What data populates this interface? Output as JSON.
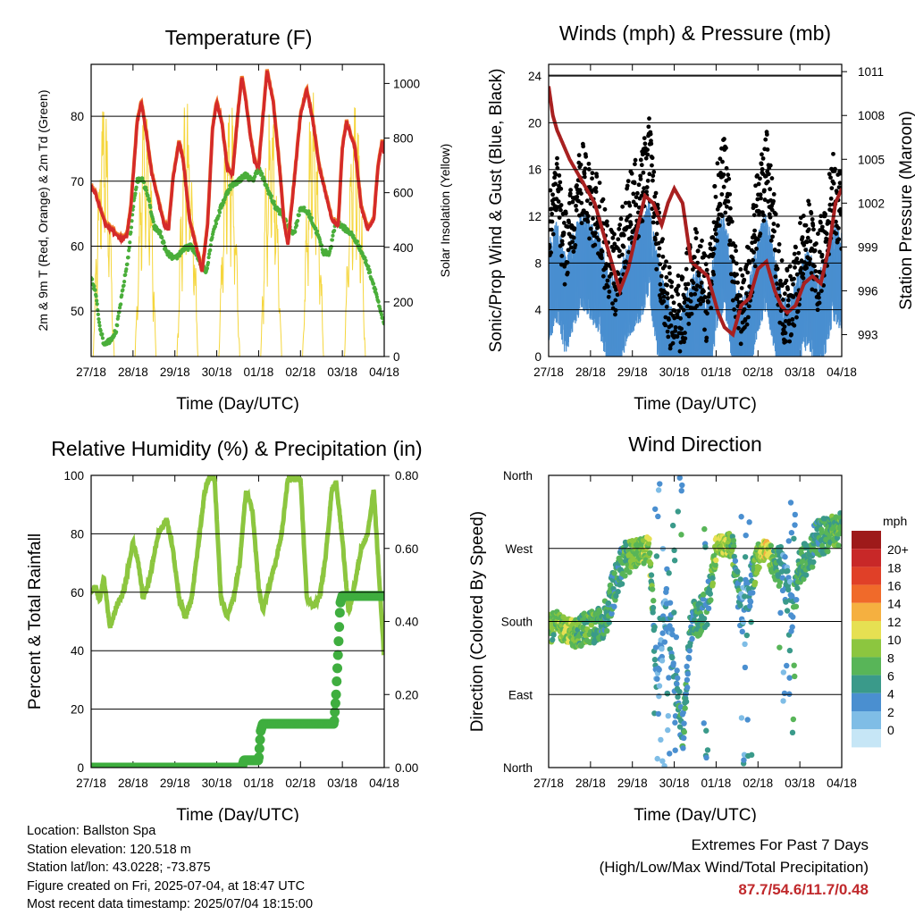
{
  "chart_data": [
    {
      "type": "line",
      "title": "Temperature (F)",
      "xlabel": "Time (Day/UTC)",
      "ylabel": "2m & 9m T (Red, Orange) & 2m Td (Green)",
      "y2label": "Solar Insolation (Yellow)",
      "categories": [
        "27/18",
        "28/18",
        "29/18",
        "30/18",
        "01/18",
        "02/18",
        "03/18",
        "04/18"
      ],
      "ylim": [
        43,
        88
      ],
      "yticks": [
        50,
        60,
        70,
        80
      ],
      "y2lim": [
        0,
        1070
      ],
      "y2ticks": [
        0,
        200,
        400,
        600,
        800,
        1000
      ],
      "series": [
        {
          "name": "2m T",
          "color": "#d42a2a",
          "x": [
            0,
            0.1,
            0.2,
            0.35,
            0.5,
            0.6,
            0.75,
            0.85,
            0.95,
            1.1,
            1.2,
            1.3,
            1.45,
            1.6,
            1.75,
            1.85,
            1.95,
            2.1,
            2.2,
            2.35,
            2.5,
            2.65,
            2.78,
            2.9,
            3.0,
            3.12,
            3.25,
            3.38,
            3.5,
            3.6,
            3.7,
            3.8,
            3.9,
            4.0,
            4.08,
            4.2,
            4.35,
            4.5,
            4.6,
            4.7,
            4.85,
            5.0,
            5.15,
            5.3,
            5.45,
            5.6,
            5.75,
            5.9,
            6.0,
            6.1,
            6.3,
            6.45,
            6.6,
            6.75,
            6.85,
            6.95,
            7.0
          ],
          "values": [
            69,
            68,
            66,
            63,
            62.5,
            61.5,
            61,
            61.5,
            66,
            79,
            82,
            78,
            71,
            67,
            63,
            62.5,
            70,
            76,
            73,
            64,
            60,
            56,
            63,
            78,
            82,
            79,
            72,
            71,
            80,
            86,
            82,
            77,
            73,
            72,
            78,
            87,
            82,
            72,
            64,
            60,
            70,
            80,
            84,
            79,
            72,
            68,
            64,
            63,
            75,
            79,
            75,
            66,
            62.5,
            64,
            72,
            76,
            74
          ]
        },
        {
          "name": "9m T",
          "color": "#f07a2a",
          "x": [
            0,
            1.1,
            1.2,
            2.1,
            2.9,
            3.0,
            3.6,
            4.2,
            5.15,
            6.1,
            7.0
          ],
          "values": [
            69,
            79,
            81,
            75,
            77,
            81,
            85,
            86,
            83,
            78,
            73
          ]
        },
        {
          "name": "2m Td",
          "color": "#4aae3a",
          "x": [
            0,
            0.1,
            0.2,
            0.3,
            0.45,
            0.6,
            0.75,
            0.9,
            1.0,
            1.1,
            1.2,
            1.35,
            1.5,
            1.65,
            1.8,
            2.0,
            2.2,
            2.4,
            2.6,
            2.75,
            2.9,
            3.1,
            3.3,
            3.5,
            3.7,
            3.85,
            4.0,
            4.2,
            4.4,
            4.55,
            4.7,
            4.85,
            5.0,
            5.2,
            5.4,
            5.55,
            5.7,
            5.85,
            6.0,
            6.2,
            6.4,
            6.6,
            6.8,
            6.9,
            7.0
          ],
          "values": [
            55,
            53,
            48,
            45,
            45.5,
            47,
            53,
            59,
            66,
            70,
            70.5,
            68,
            63,
            62,
            59,
            58,
            59.5,
            60,
            57.5,
            56,
            62,
            66,
            69,
            70,
            71,
            70,
            72,
            69,
            66,
            65,
            63,
            62,
            66,
            65,
            62,
            59,
            59,
            64,
            63,
            62,
            60,
            57,
            53,
            50,
            48
          ]
        },
        {
          "name": "Solar Insolation",
          "axis": "y2",
          "color": "#f5d63d",
          "x": [
            0.15,
            0.28,
            0.42,
            0.55,
            1.05,
            1.15,
            1.3,
            1.45,
            1.55,
            2.05,
            2.15,
            2.3,
            2.45,
            2.55,
            3.05,
            3.15,
            3.3,
            3.45,
            3.55,
            4.05,
            4.15,
            4.3,
            4.45,
            4.55,
            5.05,
            5.15,
            5.3,
            5.45,
            5.55,
            6.05,
            6.15,
            6.3,
            6.45,
            6.55,
            6.85,
            6.95,
            7.0
          ],
          "values": [
            0,
            520,
            1000,
            0,
            0,
            1070,
            200,
            900,
            0,
            0,
            950,
            600,
            870,
            0,
            0,
            1000,
            150,
            850,
            0,
            0,
            1020,
            700,
            900,
            0,
            0,
            980,
            500,
            900,
            0,
            0,
            950,
            800,
            1000,
            0,
            0,
            800,
            1000
          ]
        }
      ]
    },
    {
      "type": "scatter",
      "title": "Winds (mph) & Pressure (mb)",
      "xlabel": "Time (Day/UTC)",
      "ylabel": "Sonic/Prop Wind & Gust (Blue, Black)",
      "y2label": "Station Pressure (Maroon)",
      "categories": [
        "27/18",
        "28/18",
        "29/18",
        "30/18",
        "01/18",
        "02/18",
        "03/18",
        "04/18"
      ],
      "ylim": [
        0,
        25
      ],
      "yticks": [
        0,
        4,
        8,
        12,
        16,
        20,
        24
      ],
      "y2lim": [
        991.5,
        1011.5
      ],
      "y2ticks": [
        993,
        996,
        999,
        1002,
        1005,
        1008,
        1011
      ],
      "series": [
        {
          "name": "Wind",
          "color": "#4a8fd0",
          "x": [
            0,
            0.2,
            0.4,
            0.6,
            0.8,
            1.0,
            1.2,
            1.4,
            1.6,
            1.8,
            2.0,
            2.2,
            2.4,
            2.6,
            2.8,
            3.0,
            3.2,
            3.4,
            3.6,
            3.8,
            4.0,
            4.2,
            4.4,
            4.6,
            4.8,
            5.0,
            5.2,
            5.4,
            5.6,
            5.8,
            6.0,
            6.2,
            6.4,
            6.6,
            6.8,
            7.0
          ],
          "values": [
            7,
            9,
            6,
            8,
            10,
            9,
            8,
            5,
            4,
            6,
            8,
            9,
            11,
            6,
            3,
            1,
            2,
            4,
            5,
            2,
            8,
            10,
            5,
            2,
            4,
            8,
            10,
            6,
            2,
            3,
            5,
            7,
            4,
            6,
            9,
            8
          ]
        },
        {
          "name": "Gust",
          "color": "#000000",
          "x": [
            0,
            0.2,
            0.4,
            0.6,
            0.8,
            1.0,
            1.2,
            1.4,
            1.6,
            1.8,
            2.0,
            2.2,
            2.4,
            2.6,
            2.8,
            3.0,
            3.2,
            3.4,
            3.6,
            3.8,
            4.0,
            4.2,
            4.4,
            4.6,
            4.8,
            5.0,
            5.2,
            5.4,
            5.6,
            5.8,
            6.0,
            6.2,
            6.4,
            6.6,
            6.8,
            7.0
          ],
          "values": [
            11,
            14,
            9,
            12,
            15,
            13,
            12,
            8,
            7,
            10,
            13,
            14,
            17,
            10,
            5,
            3,
            4,
            7,
            8,
            4,
            13,
            16,
            8,
            4,
            7,
            13,
            16,
            10,
            4,
            5,
            8,
            11,
            7,
            10,
            14,
            12
          ]
        },
        {
          "name": "Station Pressure",
          "axis": "y2",
          "color": "#a82020",
          "x": [
            0,
            0.1,
            0.2,
            0.35,
            0.5,
            0.7,
            0.9,
            1.1,
            1.3,
            1.5,
            1.7,
            1.9,
            2.1,
            2.3,
            2.5,
            2.7,
            2.85,
            3.0,
            3.2,
            3.4,
            3.6,
            3.8,
            3.95,
            4.05,
            4.2,
            4.4,
            4.6,
            4.8,
            5.0,
            5.2,
            5.4,
            5.55,
            5.7,
            5.9,
            6.1,
            6.3,
            6.5,
            6.7,
            6.85,
            7.0
          ],
          "values": [
            1010,
            1008,
            1007,
            1006,
            1005,
            1004,
            1003,
            1002,
            1000,
            998,
            996,
            997.5,
            1000,
            1002.5,
            1002,
            1000.5,
            1002,
            1003,
            1002,
            998,
            997.5,
            997,
            995.5,
            994.5,
            993.5,
            993,
            995,
            995.5,
            997.5,
            998,
            996,
            995,
            994.5,
            995,
            996.5,
            997,
            996.5,
            999,
            1002,
            1003
          ]
        }
      ]
    },
    {
      "type": "line",
      "title": "Relative Humidity (%) & Precipitation (in)",
      "xlabel": "Time (Day/UTC)",
      "ylabel": "Percent & Total Rainfall",
      "categories": [
        "27/18",
        "28/18",
        "29/18",
        "30/18",
        "01/18",
        "02/18",
        "03/18",
        "04/18"
      ],
      "ylim": [
        0,
        100
      ],
      "yticks": [
        0,
        20,
        40,
        60,
        80,
        100
      ],
      "y2lim": [
        0,
        0.8
      ],
      "y2ticks": [
        "0.00",
        "0.20",
        "0.40",
        "0.60",
        "0.80"
      ],
      "series": [
        {
          "name": "Relative Humidity",
          "color": "#8cc63f",
          "x": [
            0,
            0.1,
            0.2,
            0.3,
            0.45,
            0.6,
            0.8,
            0.9,
            1.0,
            1.1,
            1.25,
            1.4,
            1.6,
            1.8,
            1.95,
            2.1,
            2.25,
            2.4,
            2.55,
            2.7,
            2.8,
            2.95,
            3.1,
            3.25,
            3.4,
            3.55,
            3.7,
            3.85,
            4.0,
            4.1,
            4.25,
            4.4,
            4.55,
            4.7,
            4.85,
            5.0,
            5.15,
            5.3,
            5.45,
            5.6,
            5.75,
            5.85,
            6.0,
            6.15,
            6.3,
            6.45,
            6.6,
            6.75,
            6.9,
            7.0
          ],
          "values": [
            60,
            62,
            57,
            65,
            48,
            55,
            61,
            70,
            77,
            72,
            58,
            65,
            80,
            85,
            75,
            58,
            51,
            58,
            75,
            93,
            99,
            99,
            58,
            52,
            58,
            70,
            95,
            88,
            62,
            54,
            62,
            70,
            80,
            99,
            99,
            99,
            58,
            55,
            58,
            72,
            95,
            98,
            78,
            53,
            63,
            75,
            80,
            95,
            60,
            37
          ]
        },
        {
          "name": "Total Precipitation",
          "axis": "y2",
          "color": "#3fae3f",
          "x": [
            0,
            3.6,
            3.65,
            3.7,
            4.0,
            4.05,
            4.1,
            4.2,
            5.0,
            5.8,
            5.85,
            5.9,
            5.95,
            6.0,
            7.0
          ],
          "values": [
            0,
            0,
            0.02,
            0.02,
            0.02,
            0.1,
            0.12,
            0.12,
            0.12,
            0.12,
            0.2,
            0.32,
            0.45,
            0.47,
            0.47
          ]
        }
      ]
    },
    {
      "type": "scatter",
      "title": "Wind Direction",
      "xlabel": "Time (Day/UTC)",
      "ylabel": "Direction (Colored By Speed)",
      "categories": [
        "27/18",
        "28/18",
        "29/18",
        "30/18",
        "01/18",
        "02/18",
        "03/18",
        "04/18"
      ],
      "yticks": [
        "North",
        "East",
        "South",
        "West",
        "North"
      ],
      "ylim": [
        0,
        360
      ],
      "legend": {
        "title": "mph",
        "labels": [
          "0",
          "2",
          "4",
          "6",
          "8",
          "10",
          "12",
          "14",
          "16",
          "18",
          "20+"
        ],
        "colors": [
          "#c6e6f6",
          "#7fbde6",
          "#4a8fd0",
          "#3a9a8a",
          "#58b558",
          "#8cc63f",
          "#e6e052",
          "#f5b040",
          "#f06a2a",
          "#e04028",
          "#c82828",
          "#9e1a1a"
        ]
      },
      "series": [
        {
          "name": "Direction",
          "x": [
            0,
            0.2,
            0.4,
            0.6,
            0.8,
            1.0,
            1.2,
            1.4,
            1.6,
            1.8,
            2.0,
            2.2,
            2.4,
            2.6,
            2.8,
            3.0,
            3.2,
            3.4,
            3.6,
            3.8,
            4.0,
            4.2,
            4.4,
            4.6,
            4.8,
            5.0,
            5.2,
            5.4,
            5.6,
            5.8,
            6.0,
            6.2,
            6.4,
            6.6,
            6.8,
            7.0
          ],
          "values": [
            170,
            175,
            170,
            165,
            170,
            172,
            175,
            190,
            230,
            255,
            262,
            265,
            270,
            100,
            200,
            120,
            40,
            180,
            185,
            200,
            270,
            275,
            270,
            185,
            220,
            260,
            270,
            250,
            245,
            190,
            250,
            260,
            280,
            285,
            290,
            295
          ],
          "speeds": [
            7,
            8,
            9,
            8,
            7,
            7,
            6,
            5,
            5,
            6,
            8,
            8,
            9,
            2,
            3,
            4,
            5,
            5,
            6,
            4,
            9,
            10,
            7,
            3,
            4,
            8,
            11,
            7,
            3,
            4,
            6,
            6,
            5,
            6,
            7,
            7
          ]
        }
      ]
    }
  ],
  "info": {
    "location": "Location: Ballston Spa",
    "elevation": "Station elevation: 120.518 m",
    "latlon": "Station lat/lon: 43.0228; -73.875",
    "created": "Figure created on Fri, 2025-07-04, at 18:47 UTC",
    "recent": "Most recent data timestamp: 2025/07/04 18:15:00"
  },
  "extremes": {
    "line1": "Extremes For Past 7 Days",
    "line2": "(High/Low/Max Wind/Total Precipitation)",
    "values": "87.7/54.6/11.7/0.48"
  }
}
